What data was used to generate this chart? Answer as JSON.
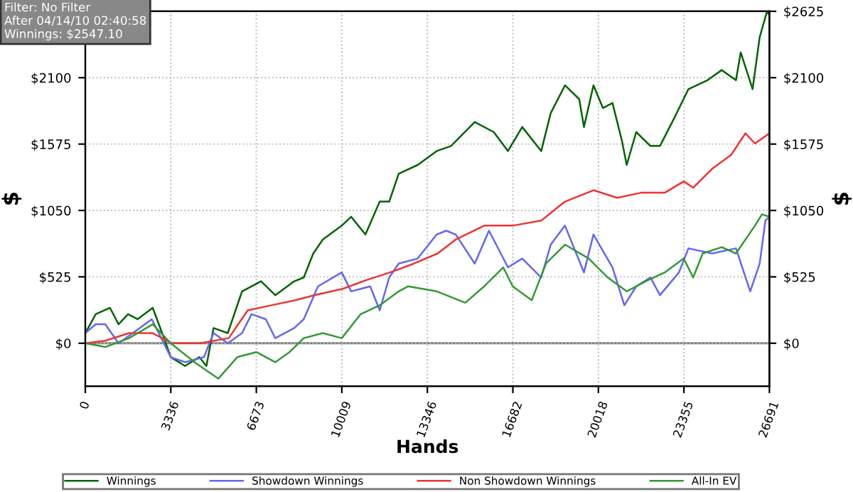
{
  "chart_data": {
    "type": "line",
    "xlabel": "Hands",
    "ylabel": "$",
    "y2label": "$",
    "annotations": [
      "Filter: No Filter\nAfter 04/14/10 02:40:58\nWinnings: $2547.10"
    ],
    "xlim": [
      0,
      26691
    ],
    "xticks": [
      0,
      3336,
      6673,
      10009,
      13346,
      16682,
      20018,
      23355,
      26691
    ],
    "ylim": [
      -340,
      2625
    ],
    "yticks": [
      {
        "value": 0,
        "label": "$0"
      },
      {
        "value": 525,
        "label": "$525"
      },
      {
        "value": 1050,
        "label": "$1050"
      },
      {
        "value": 1575,
        "label": "$1575"
      },
      {
        "value": 2100,
        "label": "$2100"
      },
      {
        "value": 2625,
        "label": null
      }
    ],
    "y2lim": [
      -340,
      2625
    ],
    "y2ticks": [
      {
        "value": 0,
        "label": "$0"
      },
      {
        "value": 525,
        "label": "$525"
      },
      {
        "value": 1050,
        "label": "$1050"
      },
      {
        "value": 1575,
        "label": "$1575"
      },
      {
        "value": 2100,
        "label": "$2100"
      },
      {
        "value": 2625,
        "label": "$2625"
      }
    ],
    "grid": true,
    "legend": "bottom",
    "marker": "none",
    "line_style": "solid",
    "ref_lines": [
      {
        "axis": "y",
        "value": 0,
        "color": "#808080",
        "line_style": "solid"
      }
    ],
    "series": [
      {
        "name": "Winnings",
        "color": "#006400",
        "x": [
          0,
          407,
          963,
          1297,
          1668,
          2038,
          2631,
          2998,
          3335,
          3891,
          4447,
          4725,
          5003,
          5559,
          6115,
          6856,
          7412,
          8153,
          8523,
          8894,
          9264,
          10005,
          10375,
          10931,
          11487,
          11857,
          12227,
          12969,
          13710,
          14268,
          15194,
          15935,
          16491,
          17047,
          17788,
          18159,
          18715,
          19271,
          19456,
          19827,
          20197,
          20568,
          20938,
          21124,
          21494,
          22050,
          22421,
          22977,
          23533,
          24274,
          24830,
          25386,
          25571,
          26035,
          26312,
          26590,
          26691
        ],
        "values": [
          80,
          230,
          280,
          150,
          230,
          190,
          280,
          80,
          -110,
          -180,
          -110,
          -180,
          120,
          80,
          410,
          490,
          380,
          490,
          520,
          710,
          820,
          930,
          1000,
          860,
          1120,
          1120,
          1340,
          1410,
          1520,
          1560,
          1750,
          1670,
          1520,
          1710,
          1520,
          1820,
          2040,
          1930,
          1710,
          2040,
          1860,
          1900,
          1600,
          1410,
          1670,
          1560,
          1560,
          1780,
          2010,
          2080,
          2160,
          2080,
          2300,
          2010,
          2420,
          2620,
          2600
        ]
      },
      {
        "name": "Showdown Winnings",
        "color": "#6666ee",
        "x": [
          0,
          407,
          778,
          1297,
          1853,
          2594,
          2964,
          3335,
          3891,
          4632,
          5003,
          5559,
          6115,
          6486,
          7041,
          7412,
          8153,
          8523,
          9079,
          10005,
          10375,
          11116,
          11487,
          11857,
          12227,
          12968,
          13710,
          14083,
          14453,
          15194,
          15750,
          16491,
          17047,
          17788,
          18159,
          18715,
          19456,
          19827,
          20568,
          21031,
          21494,
          22050,
          22421,
          23162,
          23533,
          24459,
          25386,
          25942,
          26312,
          26534,
          26691
        ],
        "values": [
          80,
          150,
          150,
          0,
          80,
          190,
          40,
          -110,
          -150,
          -110,
          80,
          0,
          80,
          230,
          190,
          40,
          120,
          190,
          450,
          560,
          410,
          450,
          260,
          520,
          630,
          670,
          860,
          890,
          860,
          630,
          890,
          600,
          670,
          520,
          780,
          930,
          560,
          860,
          600,
          300,
          450,
          520,
          380,
          560,
          750,
          710,
          750,
          410,
          630,
          970,
          1000
        ]
      },
      {
        "name": "Non Showdown Winnings",
        "color": "#ee3333",
        "x": [
          0,
          778,
          1705,
          2631,
          3372,
          4484,
          5596,
          6337,
          7264,
          8190,
          8931,
          10042,
          10968,
          11894,
          12821,
          13747,
          14453,
          15564,
          16676,
          17788,
          18715,
          19827,
          20753,
          21679,
          22606,
          23347,
          23717,
          24459,
          25200,
          25756,
          26127,
          26691
        ],
        "values": [
          0,
          20,
          80,
          80,
          0,
          0,
          40,
          260,
          300,
          340,
          380,
          430,
          500,
          560,
          630,
          710,
          820,
          930,
          930,
          970,
          1120,
          1210,
          1150,
          1190,
          1190,
          1280,
          1230,
          1380,
          1490,
          1660,
          1580,
          1660
        ]
      },
      {
        "name": "All-In EV",
        "color": "#339933",
        "x": [
          0,
          778,
          1705,
          2631,
          3335,
          4262,
          5188,
          5930,
          6671,
          7412,
          7968,
          8523,
          9264,
          10005,
          10746,
          11487,
          12227,
          12598,
          13710,
          14083,
          14824,
          15564,
          16306,
          16676,
          17417,
          17973,
          18715,
          19641,
          20382,
          21124,
          21865,
          22606,
          23347,
          23717,
          24088,
          24830,
          25386,
          26127,
          26405,
          26691
        ],
        "values": [
          0,
          -30,
          40,
          150,
          0,
          -150,
          -280,
          -110,
          -70,
          -150,
          -70,
          40,
          80,
          40,
          230,
          300,
          410,
          450,
          410,
          380,
          320,
          450,
          600,
          450,
          340,
          630,
          780,
          670,
          520,
          410,
          490,
          560,
          670,
          520,
          710,
          760,
          710,
          930,
          1020,
          1000
        ]
      }
    ]
  }
}
